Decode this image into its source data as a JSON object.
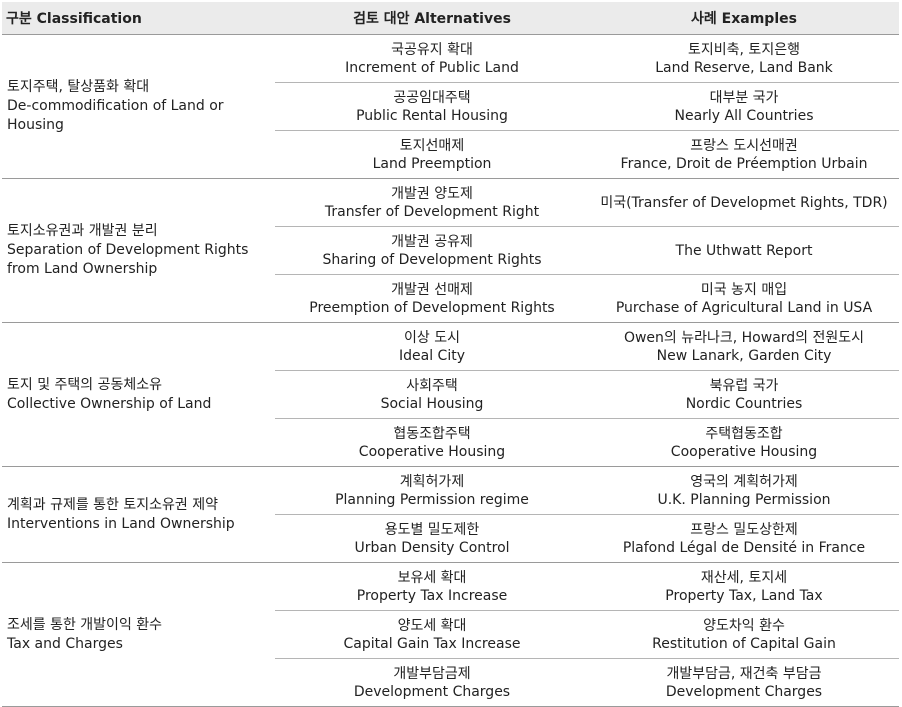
{
  "header": {
    "col1": "구분 Classification",
    "col2": "검토 대안 Alternatives",
    "col3": "사례 Examples"
  },
  "groups": [
    {
      "category_ko": "토지주택, 탈상품화 확대",
      "category_en": "De-commodification of Land or Housing",
      "rows": [
        {
          "alt_ko": "국공유지 확대",
          "alt_en": "Increment of Public Land",
          "ex_ko": "토지비축, 토지은행",
          "ex_en": "Land Reserve, Land Bank"
        },
        {
          "alt_ko": "공공임대주택",
          "alt_en": "Public Rental Housing",
          "ex_ko": "대부분 국가",
          "ex_en": "Nearly All Countries"
        },
        {
          "alt_ko": "토지선매제",
          "alt_en": "Land Preemption",
          "ex_ko": "프랑스 도시선매권",
          "ex_en": "France, Droit de Préemption Urbain"
        }
      ]
    },
    {
      "category_ko": "토지소유권과 개발권 분리",
      "category_en": "Separation of Development Rights from Land Ownership",
      "rows": [
        {
          "alt_ko": "개발권 양도제",
          "alt_en": "Transfer of Development Right",
          "ex_ko": "",
          "ex_en": "미국(Transfer of Developmet Rights, TDR)"
        },
        {
          "alt_ko": "개발권 공유제",
          "alt_en": "Sharing of Development Rights",
          "ex_ko": "",
          "ex_en": "The Uthwatt Report"
        },
        {
          "alt_ko": "개발권 선매제",
          "alt_en": "Preemption of Development Rights",
          "ex_ko": "미국 농지 매입",
          "ex_en": "Purchase of Agricultural Land in USA"
        }
      ]
    },
    {
      "category_ko": "토지 및 주택의 공동체소유",
      "category_en": "Collective Ownership of Land",
      "rows": [
        {
          "alt_ko": "이상 도시",
          "alt_en": "Ideal City",
          "ex_ko": "Owen의 뉴라나크, Howard의 전원도시",
          "ex_en": "New Lanark, Garden City"
        },
        {
          "alt_ko": "사회주택",
          "alt_en": "Social Housing",
          "ex_ko": "북유럽 국가",
          "ex_en": "Nordic Countries"
        },
        {
          "alt_ko": "협동조합주택",
          "alt_en": "Cooperative Housing",
          "ex_ko": "주택협동조합",
          "ex_en": "Cooperative Housing"
        }
      ]
    },
    {
      "category_ko": "계획과 규제를 통한 토지소유권 제약",
      "category_en": "Interventions in Land Ownership",
      "rows": [
        {
          "alt_ko": "계획허가제",
          "alt_en": "Planning Permission regime",
          "ex_ko": "영국의 계획허가제",
          "ex_en": "U.K. Planning Permission"
        },
        {
          "alt_ko": "용도별 밀도제한",
          "alt_en": "Urban Density Control",
          "ex_ko": "프랑스 밀도상한제",
          "ex_en": "Plafond Légal de Densité in France"
        }
      ]
    },
    {
      "category_ko": "조세를 통한 개발이익 환수",
      "category_en": "Tax and Charges",
      "rows": [
        {
          "alt_ko": "보유세 확대",
          "alt_en": "Property Tax Increase",
          "ex_ko": "재산세, 토지세",
          "ex_en": "Property Tax, Land Tax"
        },
        {
          "alt_ko": "양도세 확대",
          "alt_en": "Capital Gain Tax Increase",
          "ex_ko": "양도차익 환수",
          "ex_en": "Restitution of Capital Gain"
        },
        {
          "alt_ko": "개발부담금제",
          "alt_en": "Development Charges",
          "ex_ko": "개발부담금, 재건축 부담금",
          "ex_en": "Development Charges"
        }
      ]
    }
  ]
}
